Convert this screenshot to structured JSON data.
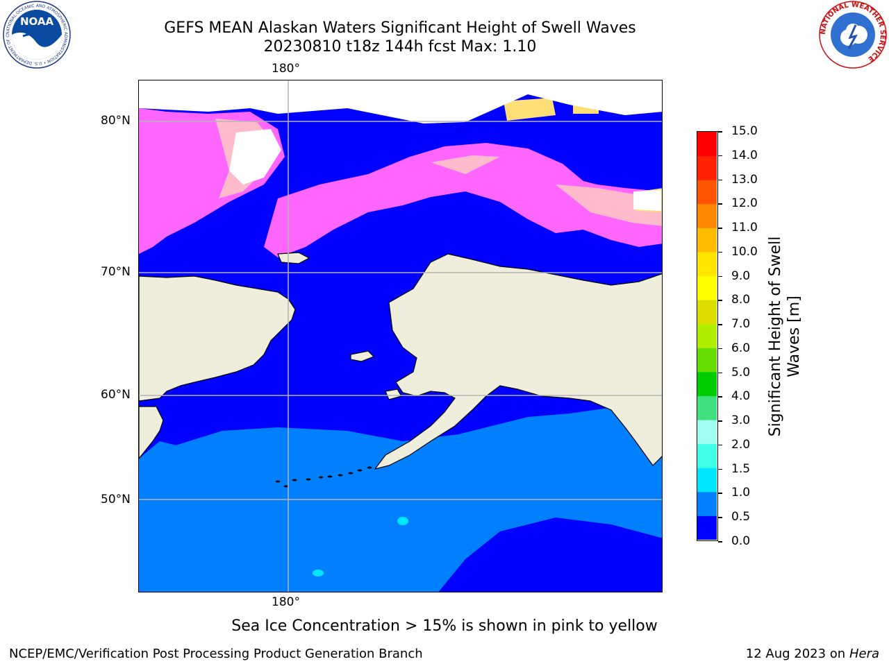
{
  "title_line1": "GEFS MEAN Alaskan Waters Significant Height of Swell Waves",
  "title_line2": "20230810 t18z 144h fcst   Max: 1.10",
  "axes": {
    "lon_top": "180°",
    "lon_bottom": "180°",
    "lat_labels": [
      "80°N",
      "70°N",
      "60°N",
      "50°N"
    ]
  },
  "colorbar": {
    "title": "Significant Height of Swell Waves [m]",
    "ticks": [
      "15.0",
      "14.0",
      "13.0",
      "12.0",
      "11.0",
      "10.0",
      "9.0",
      "8.0",
      "7.0",
      "6.0",
      "5.0",
      "4.0",
      "3.0",
      "2.0",
      "1.5",
      "1.0",
      "0.5",
      "0.0"
    ],
    "colors_bottom_to_top": [
      "#0000ff",
      "#0080ff",
      "#00e6ff",
      "#40ffe8",
      "#a0fff0",
      "#40e080",
      "#00cc00",
      "#66dd00",
      "#b0ee00",
      "#dddd00",
      "#ffff00",
      "#ffe600",
      "#ffbb00",
      "#ff8800",
      "#ff5500",
      "#ff2200",
      "#ff0000"
    ]
  },
  "map_colors": {
    "land": "#efeedd",
    "ocean_low": "#0000ff",
    "ocean_mid": "#0080ff",
    "ocean_high": "#00e6ff",
    "ice_pink": "#ff66ff",
    "ice_light": "#ffbbcc",
    "ice_yellow": "#ffdd77",
    "grid": "#b4b4b4"
  },
  "logos": {
    "left": "NOAA",
    "left_ring": "NATIONAL OCEANIC AND ATMOSPHERIC ADMINISTRATION • U.S. DEPARTMENT OF COMMERCE",
    "right_ring": "NATIONAL WEATHER SERVICE"
  },
  "caption": "Sea Ice Concentration > 15% is shown in pink to yellow",
  "footer_left": "NCEP/EMC/Verification Post Processing Product Generation Branch",
  "footer_date": "12 Aug 2023 on",
  "footer_host": "Hera"
}
